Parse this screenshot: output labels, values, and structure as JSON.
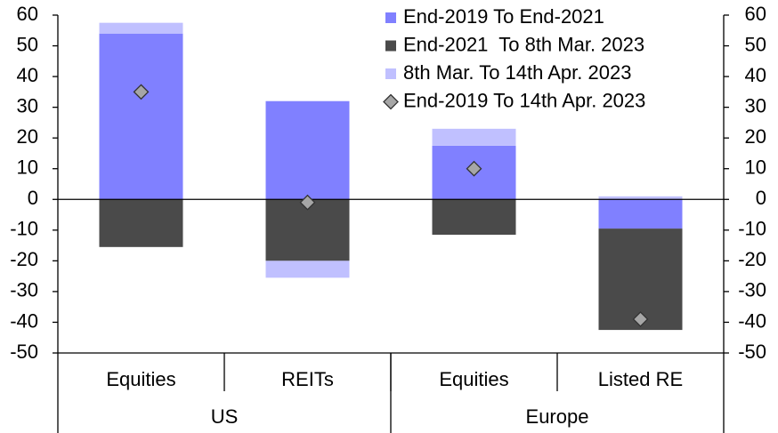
{
  "chart_data": {
    "type": "bar",
    "stacked": true,
    "groups": [
      {
        "name": "US",
        "categories": [
          "Equities",
          "REITs"
        ]
      },
      {
        "name": "Europe",
        "categories": [
          "Equities",
          "Listed RE"
        ]
      }
    ],
    "series": [
      {
        "name": "End-2019 To End-2021",
        "color": "#8080ff",
        "values": [
          54,
          32,
          17.5,
          -9.5
        ]
      },
      {
        "name": "End-2021  To 8th Mar. 2023",
        "color": "#4a4a4a",
        "values": [
          -15.5,
          -20,
          -11.5,
          -33
        ]
      },
      {
        "name": "8th Mar. To 14th Apr. 2023",
        "color": "#c0c0ff",
        "values": [
          3.5,
          -5.5,
          5.5,
          1
        ]
      },
      {
        "name": "End-2019 To 14th Apr. 2023",
        "type": "scatter",
        "marker": "diamond",
        "color": "#a6a6a6",
        "values": [
          35,
          -1,
          10,
          -39
        ]
      }
    ],
    "ylim": [
      -50,
      60
    ],
    "yticks": [
      -50,
      -40,
      -30,
      -20,
      -10,
      0,
      10,
      20,
      30,
      40,
      50,
      60
    ],
    "y2lim": [
      -50,
      60
    ],
    "y2ticks": [
      -50,
      -40,
      -30,
      -20,
      -10,
      0,
      10,
      20,
      30,
      40,
      50,
      60
    ],
    "legend": "top-right"
  }
}
